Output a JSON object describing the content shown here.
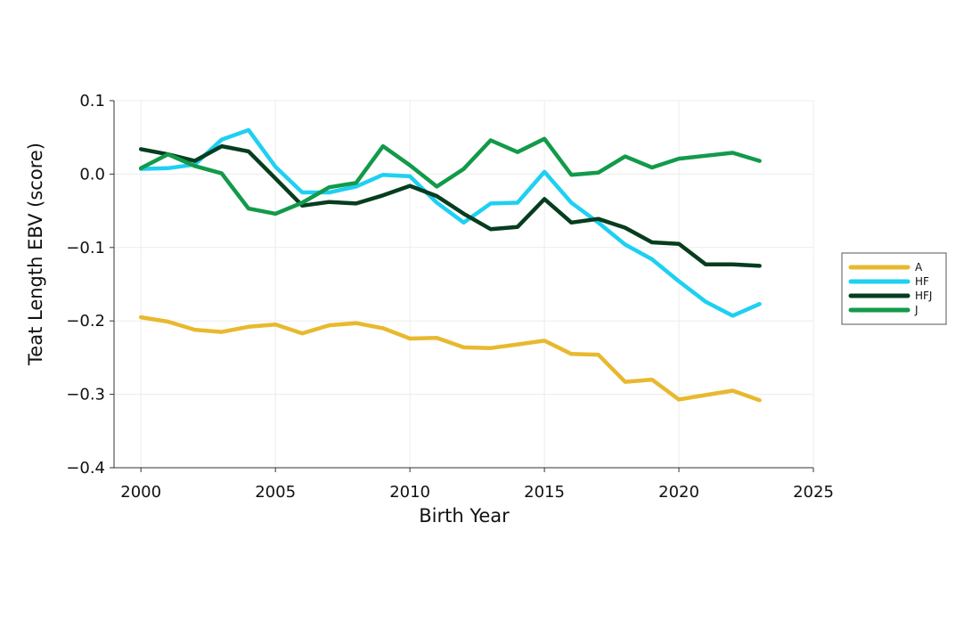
{
  "chart_data": {
    "type": "line",
    "title": "",
    "xlabel": "Birth Year",
    "ylabel": "Teat Length EBV (score)",
    "xlim": [
      1999,
      2025
    ],
    "ylim": [
      -0.4,
      0.1
    ],
    "xticks": [
      2000,
      2005,
      2010,
      2015,
      2020,
      2025
    ],
    "xtick_labels": [
      "2000",
      "2005",
      "2010",
      "2015",
      "2020",
      "2025"
    ],
    "yticks": [
      0.1,
      0.0,
      -0.1,
      -0.2,
      -0.3,
      -0.4
    ],
    "ytick_labels": [
      "0.1",
      "0.0",
      "−0.1",
      "−0.2",
      "−0.3",
      "−0.4"
    ],
    "grid": true,
    "legend_position": "right",
    "x": [
      2000,
      2001,
      2002,
      2003,
      2004,
      2005,
      2006,
      2007,
      2008,
      2009,
      2010,
      2011,
      2012,
      2013,
      2014,
      2015,
      2016,
      2017,
      2018,
      2019,
      2020,
      2021,
      2022,
      2023
    ],
    "series": [
      {
        "name": "A",
        "color": "#E8B92E",
        "values": [
          -0.195,
          -0.201,
          -0.212,
          -0.215,
          -0.208,
          -0.205,
          -0.217,
          -0.206,
          -0.203,
          -0.21,
          -0.224,
          -0.223,
          -0.236,
          -0.237,
          -0.232,
          -0.227,
          -0.245,
          -0.246,
          -0.283,
          -0.28,
          -0.307,
          -0.301,
          -0.295,
          -0.308
        ]
      },
      {
        "name": "HF",
        "color": "#1ED0F2",
        "values": [
          0.007,
          0.008,
          0.013,
          0.047,
          0.06,
          0.01,
          -0.025,
          -0.025,
          -0.017,
          -0.001,
          -0.003,
          -0.039,
          -0.066,
          -0.04,
          -0.039,
          0.003,
          -0.039,
          -0.066,
          -0.096,
          -0.116,
          -0.146,
          -0.174,
          -0.193,
          -0.177
        ]
      },
      {
        "name": "HFJ",
        "color": "#063D1F",
        "values": [
          0.034,
          0.027,
          0.018,
          0.038,
          0.031,
          -0.006,
          -0.043,
          -0.038,
          -0.04,
          -0.029,
          -0.016,
          -0.03,
          -0.054,
          -0.075,
          -0.072,
          -0.034,
          -0.066,
          -0.061,
          -0.073,
          -0.093,
          -0.095,
          -0.123,
          -0.123,
          -0.125
        ]
      },
      {
        "name": "J",
        "color": "#129A4A",
        "values": [
          0.008,
          0.027,
          0.011,
          0.001,
          -0.047,
          -0.054,
          -0.039,
          -0.018,
          -0.012,
          0.038,
          0.012,
          -0.017,
          0.007,
          0.046,
          0.03,
          0.048,
          -0.001,
          0.002,
          0.024,
          0.009,
          0.021,
          0.025,
          0.029,
          0.018
        ]
      }
    ]
  }
}
